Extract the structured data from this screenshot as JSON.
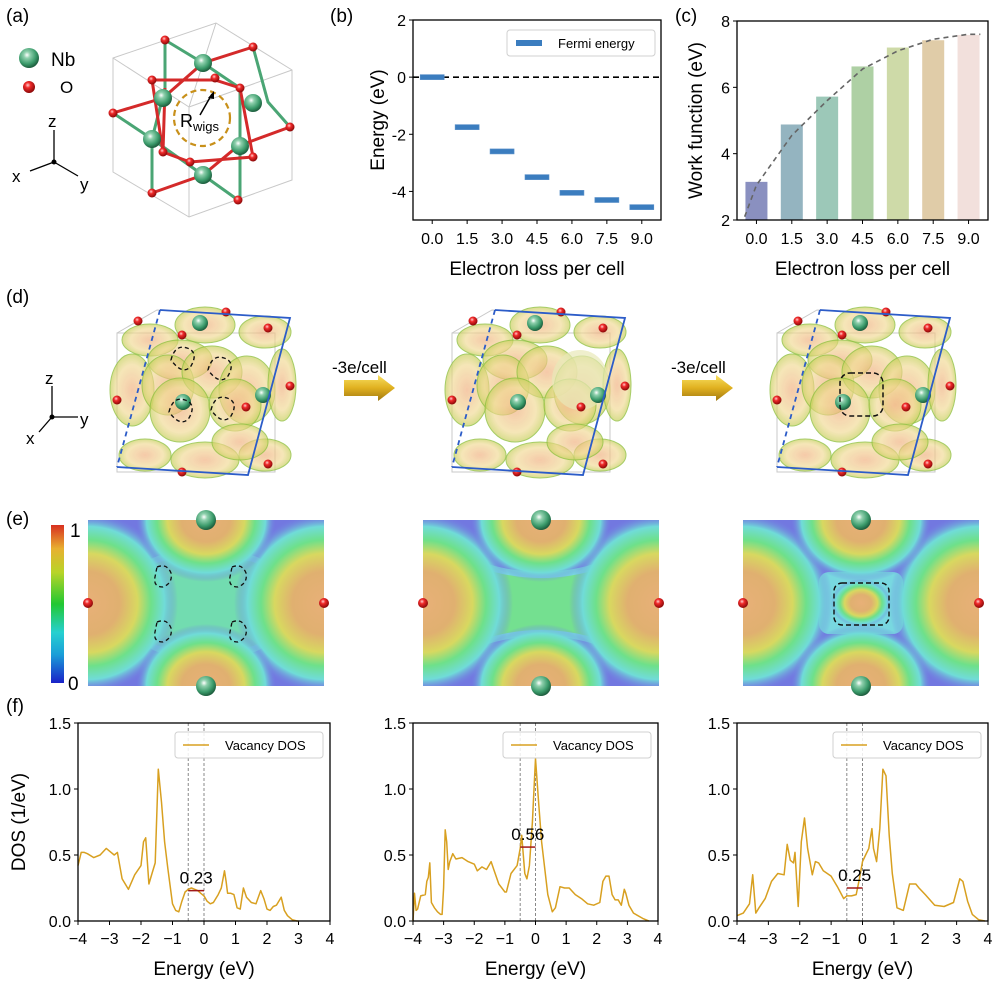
{
  "panel_labels": {
    "a": "(a)",
    "b": "(b)",
    "c": "(c)",
    "d": "(d)",
    "e": "(e)",
    "f": "(f)"
  },
  "panel_a": {
    "legend": [
      {
        "icon": "nb-atom-icon",
        "label": "Nb",
        "color": "#3a9a6a"
      },
      {
        "icon": "o-atom-icon",
        "label": "O",
        "color": "#e01818"
      }
    ],
    "axes": {
      "z": "z",
      "x": "x",
      "y": "y"
    },
    "annotation": "R",
    "annotation_sub": "wigs",
    "bond_colors": {
      "nb": "#4aa574",
      "o": "#d42a2a"
    },
    "circle_color": "#c8901a"
  },
  "panel_d": {
    "axes": {
      "z": "z",
      "x": "x",
      "y": "y"
    },
    "arrows": [
      {
        "label": "-3e/cell"
      },
      {
        "label": "-3e/cell"
      }
    ],
    "arrow_color": "#d8a818"
  },
  "panel_e": {
    "colorbar": {
      "max_label": "1",
      "min_label": "0",
      "colors": [
        "#1a22c8",
        "#1a9ed8",
        "#26d0d0",
        "#22c832",
        "#b8d428",
        "#e8b030",
        "#d83020"
      ]
    }
  },
  "chart_data": [
    {
      "id": "b",
      "type": "bar",
      "style": "horizontal-marker",
      "categories": [
        "0.0",
        "1.5",
        "3.0",
        "4.5",
        "6.0",
        "7.5",
        "9.0"
      ],
      "values": [
        0.0,
        -1.75,
        -2.6,
        -3.5,
        -4.05,
        -4.3,
        -4.55
      ],
      "series_name": "Fermi energy",
      "color": "#3b7dbf",
      "xlabel": "Electron loss per cell",
      "ylabel": "Energy (eV)",
      "ylim": [
        -5,
        2
      ],
      "yticks": [
        "2",
        "0",
        "-2",
        "-4"
      ],
      "ytick_values": [
        2,
        0,
        -2,
        -4
      ],
      "reference_line": {
        "y": 0,
        "style": "dashed",
        "color": "#000000"
      },
      "legend": {
        "placement": "top-right",
        "entries": [
          "Fermi energy"
        ]
      }
    },
    {
      "id": "c",
      "type": "bar",
      "categories": [
        "0.0",
        "1.5",
        "3.0",
        "4.5",
        "6.0",
        "7.5",
        "9.0"
      ],
      "values": [
        3.15,
        4.88,
        5.72,
        6.63,
        7.2,
        7.42,
        7.58
      ],
      "bar_colors": [
        "#8a90c0",
        "#94b4c0",
        "#9cc8b8",
        "#aed0a4",
        "#cedaa8",
        "#e0cca8",
        "#f2e0dc"
      ],
      "xlabel": "Electron loss per cell",
      "ylabel": "Work function (eV)",
      "ylim": [
        2,
        8
      ],
      "yticks": [
        "2",
        "4",
        "6",
        "8"
      ],
      "ytick_values": [
        2,
        4,
        6,
        8
      ],
      "trend_line": {
        "style": "dashed",
        "color": "#666666",
        "points": [
          [
            -0.5,
            2.1
          ],
          [
            0,
            3.05
          ],
          [
            1.5,
            4.55
          ],
          [
            3.0,
            5.6
          ],
          [
            4.5,
            6.55
          ],
          [
            6.0,
            7.1
          ],
          [
            7.5,
            7.45
          ],
          [
            9.0,
            7.6
          ],
          [
            9.5,
            7.6
          ]
        ]
      }
    },
    {
      "id": "f1",
      "type": "line",
      "series_name": "Vacancy DOS",
      "color": "#d8a020",
      "xlabel": "Energy (eV)",
      "ylabel": "DOS (1/eV)",
      "xlim": [
        -4,
        4
      ],
      "ylim": [
        0,
        1.5
      ],
      "xticks": [
        "−4",
        "−3",
        "−2",
        "−1",
        "0",
        "1",
        "2",
        "3",
        "4"
      ],
      "xtick_values": [
        -4,
        -3,
        -2,
        -1,
        0,
        1,
        2,
        3,
        4
      ],
      "yticks": [
        "0.0",
        "0.5",
        "1.0",
        "1.5"
      ],
      "ytick_values": [
        0,
        0.5,
        1.0,
        1.5
      ],
      "vlines": [
        -0.5,
        0
      ],
      "mean_marker": {
        "x0": -0.5,
        "x1": 0,
        "y": 0.23,
        "label": "0.23",
        "color": "#a01818"
      },
      "legend": {
        "placement": "top-right",
        "entries": [
          "Vacancy DOS"
        ]
      },
      "x": [
        -4.0,
        -3.9,
        -3.8,
        -3.7,
        -3.5,
        -3.3,
        -3.1,
        -2.95,
        -2.85,
        -2.75,
        -2.6,
        -2.4,
        -2.2,
        -2.0,
        -1.92,
        -1.85,
        -1.75,
        -1.65,
        -1.55,
        -1.45,
        -1.35,
        -1.25,
        -1.15,
        -1.0,
        -0.9,
        -0.8,
        -0.7,
        -0.6,
        -0.5,
        -0.4,
        -0.2,
        -0.1,
        0.0,
        0.1,
        0.2,
        0.3,
        0.45,
        0.55,
        0.65,
        0.7,
        0.75,
        0.85,
        0.95,
        1.05,
        1.15,
        1.25,
        1.35,
        1.5,
        1.65,
        1.8,
        1.9,
        2.0,
        2.1,
        2.2,
        2.3,
        2.45,
        2.55,
        2.65,
        2.8,
        2.95,
        3.0
      ],
      "y": [
        0.42,
        0.52,
        0.52,
        0.51,
        0.48,
        0.5,
        0.55,
        0.52,
        0.5,
        0.52,
        0.32,
        0.24,
        0.35,
        0.42,
        0.6,
        0.63,
        0.28,
        0.36,
        0.44,
        1.15,
        0.9,
        0.6,
        0.4,
        0.13,
        0.08,
        0.07,
        0.15,
        0.22,
        0.24,
        0.25,
        0.23,
        0.21,
        0.19,
        0.15,
        0.13,
        0.14,
        0.2,
        0.25,
        0.38,
        0.3,
        0.21,
        0.21,
        0.2,
        0.1,
        0.09,
        0.25,
        0.18,
        0.14,
        0.13,
        0.23,
        0.17,
        0.09,
        0.08,
        0.11,
        0.12,
        0.18,
        0.08,
        0.04,
        0.01,
        0.0,
        0.0
      ]
    },
    {
      "id": "f2",
      "type": "line",
      "series_name": "Vacancy DOS",
      "color": "#d8a020",
      "xlabel": "Energy (eV)",
      "ylabel": "",
      "xlim": [
        -4,
        4
      ],
      "ylim": [
        0,
        1.5
      ],
      "xticks": [
        "−4",
        "−3",
        "−2",
        "−1",
        "0",
        "1",
        "2",
        "3",
        "4"
      ],
      "xtick_values": [
        -4,
        -3,
        -2,
        -1,
        0,
        1,
        2,
        3,
        4
      ],
      "yticks": [
        "0.0",
        "0.5",
        "1.0",
        "1.5"
      ],
      "ytick_values": [
        0,
        0.5,
        1.0,
        1.5
      ],
      "vlines": [
        -0.5,
        0
      ],
      "mean_marker": {
        "x0": -0.5,
        "x1": 0,
        "y": 0.56,
        "label": "0.56",
        "color": "#a01818"
      },
      "legend": {
        "placement": "top-right",
        "entries": [
          "Vacancy DOS"
        ]
      },
      "x": [
        -4.0,
        -3.95,
        -3.9,
        -3.85,
        -3.75,
        -3.6,
        -3.55,
        -3.5,
        -3.45,
        -3.4,
        -3.3,
        -3.2,
        -3.1,
        -3.05,
        -3.0,
        -2.95,
        -2.9,
        -2.85,
        -2.8,
        -2.7,
        -2.6,
        -2.4,
        -2.2,
        -2.0,
        -1.9,
        -1.75,
        -1.6,
        -1.5,
        -1.45,
        -1.35,
        -1.2,
        -1.0,
        -0.95,
        -0.8,
        -0.6,
        -0.5,
        -0.45,
        -0.35,
        -0.28,
        -0.2,
        -0.1,
        0.0,
        0.1,
        0.2,
        0.4,
        0.55,
        0.65,
        0.8,
        0.95,
        1.1,
        1.3,
        1.5,
        1.7,
        1.9,
        2.1,
        2.2,
        2.3,
        2.4,
        2.5,
        2.6,
        2.7,
        2.8,
        2.9,
        2.95,
        3.05,
        3.2,
        3.5,
        3.7
      ],
      "y": [
        0.0,
        0.21,
        0.08,
        0.09,
        0.19,
        0.2,
        0.3,
        0.33,
        0.44,
        0.14,
        0.1,
        0.07,
        0.05,
        0.05,
        0.25,
        0.69,
        0.6,
        0.39,
        0.45,
        0.51,
        0.47,
        0.48,
        0.45,
        0.43,
        0.38,
        0.41,
        0.39,
        0.43,
        0.45,
        0.38,
        0.28,
        0.22,
        0.22,
        0.36,
        0.42,
        0.55,
        0.65,
        0.36,
        0.32,
        0.42,
        0.75,
        1.23,
        0.9,
        0.6,
        0.2,
        0.07,
        0.1,
        0.26,
        0.25,
        0.25,
        0.2,
        0.17,
        0.13,
        0.12,
        0.14,
        0.3,
        0.34,
        0.34,
        0.2,
        0.16,
        0.16,
        0.12,
        0.24,
        0.21,
        0.12,
        0.06,
        0.02,
        0.0
      ]
    },
    {
      "id": "f3",
      "type": "line",
      "series_name": "Vacancy DOS",
      "color": "#d8a020",
      "xlabel": "Energy (eV)",
      "ylabel": "",
      "xlim": [
        -4,
        4
      ],
      "ylim": [
        0,
        1.5
      ],
      "xticks": [
        "−4",
        "−3",
        "−2",
        "−1",
        "0",
        "1",
        "2",
        "3",
        "4"
      ],
      "xtick_values": [
        -4,
        -3,
        -2,
        -1,
        0,
        1,
        2,
        3,
        4
      ],
      "yticks": [
        "0.0",
        "0.5",
        "1.0",
        "1.5"
      ],
      "ytick_values": [
        0,
        0.5,
        1.0,
        1.5
      ],
      "vlines": [
        -0.5,
        0
      ],
      "mean_marker": {
        "x0": -0.5,
        "x1": 0,
        "y": 0.25,
        "label": "0.25",
        "color": "#a01818"
      },
      "legend": {
        "placement": "top-right",
        "entries": [
          "Vacancy DOS"
        ]
      },
      "x": [
        -4.0,
        -3.8,
        -3.6,
        -3.5,
        -3.4,
        -3.3,
        -3.1,
        -2.9,
        -2.7,
        -2.5,
        -2.4,
        -2.3,
        -2.2,
        -2.15,
        -2.05,
        -1.95,
        -1.85,
        -1.75,
        -1.6,
        -1.5,
        -1.4,
        -1.25,
        -1.0,
        -0.8,
        -0.6,
        -0.5,
        -0.35,
        -0.2,
        -0.1,
        0.0,
        0.1,
        0.2,
        0.3,
        0.35,
        0.45,
        0.55,
        0.65,
        0.75,
        0.85,
        0.95,
        1.1,
        1.3,
        1.5,
        1.7,
        1.8,
        2.0,
        2.3,
        2.6,
        2.9,
        3.1,
        3.2,
        3.35,
        3.5,
        3.7,
        3.9
      ],
      "y": [
        0.04,
        0.06,
        0.13,
        0.35,
        0.06,
        0.1,
        0.17,
        0.3,
        0.36,
        0.35,
        0.58,
        0.46,
        0.44,
        0.52,
        0.11,
        0.6,
        0.78,
        0.55,
        0.35,
        0.45,
        0.44,
        0.38,
        0.34,
        0.26,
        0.17,
        0.19,
        0.19,
        0.2,
        0.32,
        0.45,
        0.5,
        0.55,
        0.7,
        0.55,
        0.45,
        0.7,
        1.15,
        1.1,
        0.65,
        0.36,
        0.1,
        0.08,
        0.28,
        0.28,
        0.25,
        0.2,
        0.12,
        0.11,
        0.14,
        0.32,
        0.3,
        0.15,
        0.05,
        0.01,
        0.0
      ]
    }
  ]
}
